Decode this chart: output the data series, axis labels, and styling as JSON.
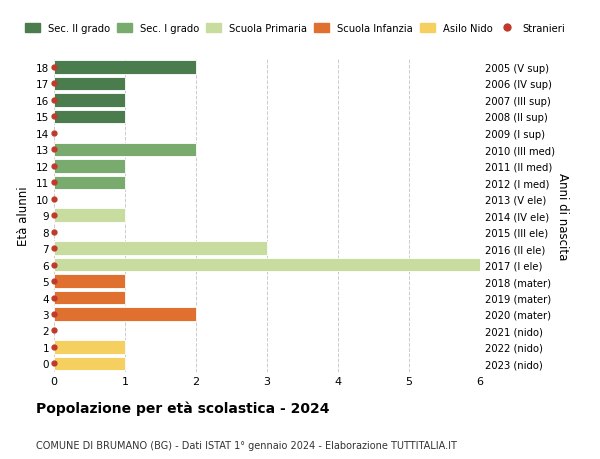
{
  "ages": [
    18,
    17,
    16,
    15,
    14,
    13,
    12,
    11,
    10,
    9,
    8,
    7,
    6,
    5,
    4,
    3,
    2,
    1,
    0
  ],
  "right_labels": [
    "2005 (V sup)",
    "2006 (IV sup)",
    "2007 (III sup)",
    "2008 (II sup)",
    "2009 (I sup)",
    "2010 (III med)",
    "2011 (II med)",
    "2012 (I med)",
    "2013 (V ele)",
    "2014 (IV ele)",
    "2015 (III ele)",
    "2016 (II ele)",
    "2017 (I ele)",
    "2018 (mater)",
    "2019 (mater)",
    "2020 (mater)",
    "2021 (nido)",
    "2022 (nido)",
    "2023 (nido)"
  ],
  "bars": [
    {
      "age": 18,
      "value": 2,
      "color": "#4a7c4e"
    },
    {
      "age": 17,
      "value": 1,
      "color": "#4a7c4e"
    },
    {
      "age": 16,
      "value": 1,
      "color": "#4a7c4e"
    },
    {
      "age": 15,
      "value": 1,
      "color": "#4a7c4e"
    },
    {
      "age": 14,
      "value": 0,
      "color": "#4a7c4e"
    },
    {
      "age": 13,
      "value": 2,
      "color": "#7aab6e"
    },
    {
      "age": 12,
      "value": 1,
      "color": "#7aab6e"
    },
    {
      "age": 11,
      "value": 1,
      "color": "#7aab6e"
    },
    {
      "age": 10,
      "value": 0,
      "color": "#7aab6e"
    },
    {
      "age": 9,
      "value": 1,
      "color": "#c8dca0"
    },
    {
      "age": 8,
      "value": 0,
      "color": "#c8dca0"
    },
    {
      "age": 7,
      "value": 3,
      "color": "#c8dca0"
    },
    {
      "age": 6,
      "value": 6,
      "color": "#c8dca0"
    },
    {
      "age": 5,
      "value": 1,
      "color": "#e07030"
    },
    {
      "age": 4,
      "value": 1,
      "color": "#e07030"
    },
    {
      "age": 3,
      "value": 2,
      "color": "#e07030"
    },
    {
      "age": 2,
      "value": 0,
      "color": "#f5d060"
    },
    {
      "age": 1,
      "value": 1,
      "color": "#f5d060"
    },
    {
      "age": 0,
      "value": 1,
      "color": "#f5d060"
    }
  ],
  "dot_color": "#c0392b",
  "xlim": [
    0,
    6
  ],
  "ylim": [
    -0.5,
    18.5
  ],
  "ylabel": "Età alunni",
  "right_ylabel": "Anni di nascita",
  "title": "Popolazione per età scolastica - 2024",
  "subtitle": "COMUNE DI BRUMANO (BG) - Dati ISTAT 1° gennaio 2024 - Elaborazione TUTTITALIA.IT",
  "legend_entries": [
    {
      "label": "Sec. II grado",
      "color": "#4a7c4e",
      "type": "patch"
    },
    {
      "label": "Sec. I grado",
      "color": "#7aab6e",
      "type": "patch"
    },
    {
      "label": "Scuola Primaria",
      "color": "#c8dca0",
      "type": "patch"
    },
    {
      "label": "Scuola Infanzia",
      "color": "#e07030",
      "type": "patch"
    },
    {
      "label": "Asilo Nido",
      "color": "#f5d060",
      "type": "patch"
    },
    {
      "label": "Stranieri",
      "color": "#c0392b",
      "type": "dot"
    }
  ],
  "grid_color": "#cccccc",
  "bg_color": "#ffffff",
  "bar_height": 0.82
}
